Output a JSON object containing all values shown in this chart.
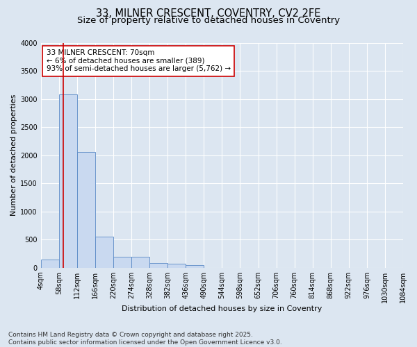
{
  "title_line1": "33, MILNER CRESCENT, COVENTRY, CV2 2FE",
  "title_line2": "Size of property relative to detached houses in Coventry",
  "xlabel": "Distribution of detached houses by size in Coventry",
  "ylabel": "Number of detached properties",
  "annotation_title": "33 MILNER CRESCENT: 70sqm",
  "annotation_line2": "← 6% of detached houses are smaller (389)",
  "annotation_line3": "93% of semi-detached houses are larger (5,762) →",
  "property_size_sqm": 70,
  "bin_edges": [
    4,
    58,
    112,
    166,
    220,
    274,
    328,
    382,
    436,
    490,
    544,
    598,
    652,
    706,
    760,
    814,
    868,
    922,
    976,
    1030,
    1084
  ],
  "bar_values": [
    150,
    3080,
    2060,
    555,
    195,
    195,
    80,
    70,
    50,
    0,
    0,
    0,
    0,
    0,
    0,
    0,
    0,
    0,
    0,
    0
  ],
  "bar_color": "#c9d9f0",
  "bar_edge_color": "#5a8ac6",
  "vline_color": "#cc0000",
  "vline_x": 70,
  "ylim": [
    0,
    4000
  ],
  "yticks": [
    0,
    500,
    1000,
    1500,
    2000,
    2500,
    3000,
    3500,
    4000
  ],
  "background_color": "#dce6f1",
  "plot_background": "#dce6f1",
  "grid_color": "#ffffff",
  "annotation_box_facecolor": "#ffffff",
  "annotation_box_edgecolor": "#cc0000",
  "footer_line1": "Contains HM Land Registry data © Crown copyright and database right 2025.",
  "footer_line2": "Contains public sector information licensed under the Open Government Licence v3.0.",
  "title_fontsize": 10.5,
  "subtitle_fontsize": 9.5,
  "axis_label_fontsize": 8,
  "tick_fontsize": 7,
  "annotation_fontsize": 7.5,
  "footer_fontsize": 6.5
}
